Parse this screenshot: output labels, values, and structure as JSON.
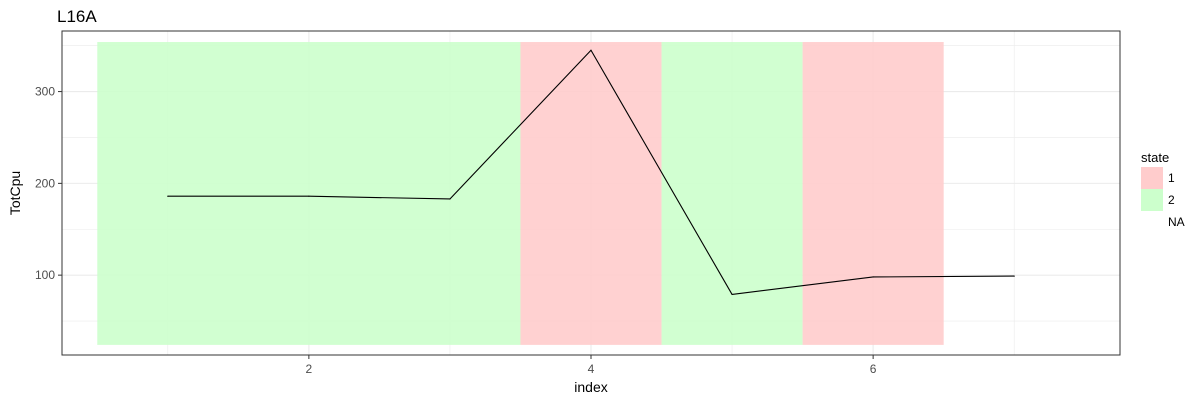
{
  "chart_data": {
    "type": "line",
    "title": "L16A",
    "xlabel": "index",
    "ylabel": "TotCpu",
    "x": [
      1,
      2,
      3,
      4,
      5,
      6,
      7
    ],
    "series": [
      {
        "values": [
          186,
          186,
          183,
          345,
          79,
          98,
          99
        ]
      }
    ],
    "xlim": [
      0.25,
      7.75
    ],
    "ylim": [
      13,
      366
    ],
    "x_ticks": [
      2,
      4,
      6
    ],
    "x_tick_labels": [
      "2",
      "4",
      "6"
    ],
    "y_ticks": [
      100,
      200,
      300
    ],
    "y_tick_labels": [
      "100",
      "200",
      "300"
    ],
    "grid": true,
    "state_bands": {
      "ymin": 24,
      "ymax": 354,
      "bands": [
        {
          "state": "2",
          "xmin": 0.5,
          "xmax": 3.5
        },
        {
          "state": "1",
          "xmin": 3.5,
          "xmax": 4.5
        },
        {
          "state": "2",
          "xmin": 4.5,
          "xmax": 5.5
        },
        {
          "state": "1",
          "xmin": 5.5,
          "xmax": 6.5
        }
      ]
    },
    "legend": {
      "title": "state",
      "placement": "right",
      "entries": [
        {
          "label": "1",
          "color": "#ffcccc"
        },
        {
          "label": "2",
          "color": "#ccffcc"
        },
        {
          "label": "NA",
          "color": ""
        }
      ]
    },
    "colors": {
      "line": "#000000",
      "grid": "#ebebeb",
      "panel_border": "#333333",
      "tick_text": "#4d4d4d"
    }
  }
}
